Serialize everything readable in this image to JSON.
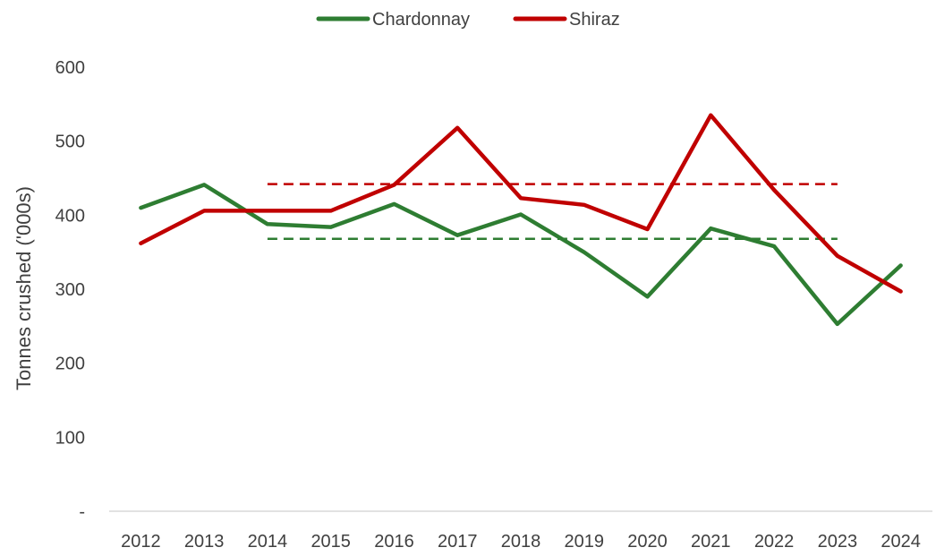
{
  "chart_data": {
    "type": "line",
    "title": "",
    "xlabel": "",
    "ylabel": "Tonnes crushed ('000s)",
    "categories": [
      "2012",
      "2013",
      "2014",
      "2015",
      "2016",
      "2017",
      "2018",
      "2019",
      "2020",
      "2021",
      "2022",
      "2023",
      "2024"
    ],
    "y_ticks": [
      "-",
      "100",
      "200",
      "300",
      "400",
      "500",
      "600"
    ],
    "ylim": [
      0,
      600
    ],
    "grid": false,
    "legend_position": "top-center",
    "series": [
      {
        "name": "Chardonnay",
        "color": "#2e7d32",
        "values": [
          410,
          441,
          388,
          384,
          415,
          373,
          401,
          350,
          290,
          382,
          358,
          253,
          332
        ]
      },
      {
        "name": "Shiraz",
        "color": "#c00000",
        "values": [
          362,
          406,
          406,
          406,
          441,
          518,
          423,
          414,
          381,
          535,
          434,
          345,
          297
        ]
      }
    ],
    "reference_lines": [
      {
        "series": "Shiraz",
        "style": "dashed",
        "color": "#c00000",
        "value": 442,
        "from": "2014",
        "to": "2023"
      },
      {
        "series": "Chardonnay",
        "style": "dashed",
        "color": "#2e7d32",
        "value": 368,
        "from": "2014",
        "to": "2023"
      }
    ]
  }
}
